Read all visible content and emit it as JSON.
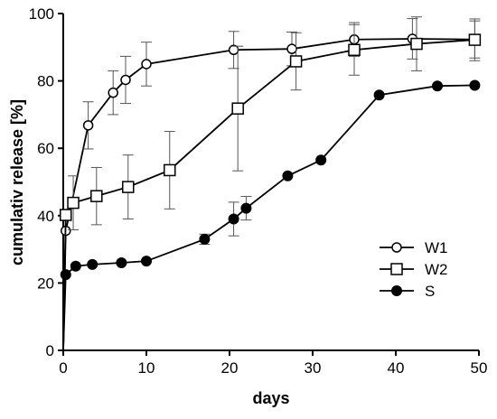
{
  "chart_data": {
    "type": "line",
    "title": "",
    "xlabel": "days",
    "ylabel": "cumulativ release [%]",
    "xlim": [
      0,
      50
    ],
    "ylim": [
      0,
      100
    ],
    "xticks": [
      "0",
      "10",
      "20",
      "30",
      "40",
      "50"
    ],
    "yticks": [
      "0",
      "20",
      "40",
      "60",
      "80",
      "100"
    ],
    "grid": false,
    "legend_position": "right",
    "series": [
      {
        "name": "W1",
        "marker": "open-circle",
        "points": [
          {
            "x": 0,
            "y": 0
          },
          {
            "x": 0.3,
            "y": 35.5,
            "err": 0
          },
          {
            "x": 3,
            "y": 66.8,
            "err": 7
          },
          {
            "x": 6,
            "y": 76.5,
            "err": 6.5
          },
          {
            "x": 7.5,
            "y": 80.3,
            "err": 7
          },
          {
            "x": 10,
            "y": 85,
            "err": 6.5
          },
          {
            "x": 20.5,
            "y": 89.2,
            "err": 5.5
          },
          {
            "x": 27.5,
            "y": 89.5,
            "err": 5
          },
          {
            "x": 35,
            "y": 92.3,
            "err": 5
          },
          {
            "x": 42,
            "y": 92.5,
            "err": 6
          },
          {
            "x": 49.5,
            "y": 92.3,
            "err": 5.5
          }
        ]
      },
      {
        "name": "W2",
        "marker": "open-square",
        "points": [
          {
            "x": 0,
            "y": 0
          },
          {
            "x": 0.3,
            "y": 40.2,
            "err": 0
          },
          {
            "x": 1.2,
            "y": 43.8,
            "err": 8
          },
          {
            "x": 4,
            "y": 45.8,
            "err": 8.5
          },
          {
            "x": 7.8,
            "y": 48.5,
            "err": 9.5
          },
          {
            "x": 12.8,
            "y": 53.5,
            "err": 11.5
          },
          {
            "x": 21,
            "y": 71.8,
            "err": 18.5
          },
          {
            "x": 28,
            "y": 85.8,
            "err": 8.5
          },
          {
            "x": 35,
            "y": 89.2,
            "err": 7.5
          },
          {
            "x": 42.5,
            "y": 91,
            "err": 8
          },
          {
            "x": 49.5,
            "y": 92.2,
            "err": 6.2
          }
        ]
      },
      {
        "name": "S",
        "marker": "filled-circle",
        "points": [
          {
            "x": 0,
            "y": 0
          },
          {
            "x": 0.3,
            "y": 22.5,
            "err": 0
          },
          {
            "x": 1.5,
            "y": 25,
            "err": 0
          },
          {
            "x": 3.5,
            "y": 25.5,
            "err": 0
          },
          {
            "x": 7,
            "y": 26,
            "err": 0
          },
          {
            "x": 10,
            "y": 26.5,
            "err": 0
          },
          {
            "x": 17,
            "y": 33,
            "err": 1.5
          },
          {
            "x": 20.5,
            "y": 39,
            "err": 5
          },
          {
            "x": 22,
            "y": 42.2,
            "err": 3.5
          },
          {
            "x": 27,
            "y": 51.8,
            "err": 0
          },
          {
            "x": 31,
            "y": 56.5,
            "err": 0
          },
          {
            "x": 38,
            "y": 75.8,
            "err": 0
          },
          {
            "x": 45,
            "y": 78.5,
            "err": 0
          },
          {
            "x": 49.5,
            "y": 78.7,
            "err": 0
          }
        ]
      }
    ]
  }
}
